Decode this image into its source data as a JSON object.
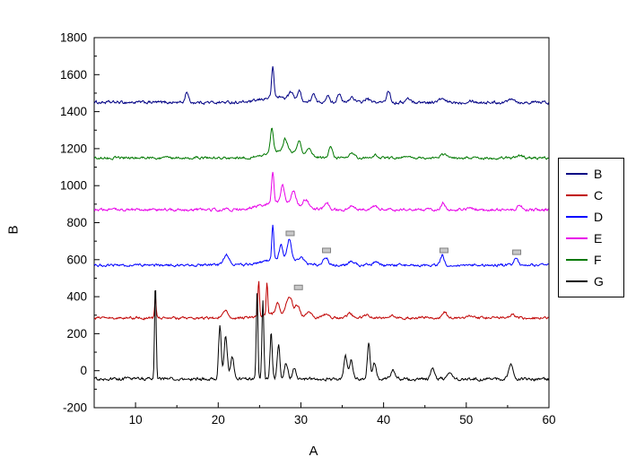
{
  "chart_data": {
    "type": "line",
    "title": "",
    "xlabel": "A",
    "ylabel": "B",
    "xlim": [
      5,
      60
    ],
    "ylim": [
      -200,
      1800
    ],
    "x_ticks": [
      10,
      20,
      30,
      40,
      50,
      60
    ],
    "x_minor_ticks": [
      15,
      25,
      35,
      45,
      55
    ],
    "y_ticks": [
      -200,
      0,
      200,
      400,
      600,
      800,
      1000,
      1200,
      1400,
      1600,
      1800
    ],
    "y_minor_ticks": [
      -100,
      100,
      300,
      500,
      700,
      900,
      1100,
      1300,
      1500,
      1700
    ],
    "grid": false,
    "legend_position": "right",
    "axis_color": "#000000",
    "background": "#ffffff",
    "series": [
      {
        "name": "B",
        "color": "#000084",
        "baseline": 1450,
        "noise": 13,
        "peaks": [
          [
            16.2,
            60,
            0.25
          ],
          [
            26.6,
            160,
            0.2
          ],
          [
            28.8,
            40,
            0.4
          ],
          [
            29.8,
            55,
            0.35
          ],
          [
            31.5,
            45,
            0.3
          ],
          [
            33.2,
            35,
            0.35
          ],
          [
            34.6,
            50,
            0.3
          ],
          [
            36.2,
            30,
            0.4
          ],
          [
            38.0,
            20,
            0.4
          ],
          [
            40.6,
            65,
            0.3
          ],
          [
            43.0,
            20,
            0.4
          ],
          [
            47.0,
            18,
            0.5
          ],
          [
            50.5,
            12,
            0.5
          ],
          [
            55.5,
            25,
            0.5
          ],
          [
            27.0,
            30,
            2.2
          ]
        ]
      },
      {
        "name": "C",
        "color": "#c00000",
        "baseline": 285,
        "noise": 11,
        "peaks": [
          [
            12.4,
            105,
            0.13
          ],
          [
            20.8,
            45,
            0.45
          ],
          [
            24.9,
            195,
            0.13
          ],
          [
            25.9,
            180,
            0.13
          ],
          [
            27.2,
            60,
            0.3
          ],
          [
            28.6,
            95,
            0.5
          ],
          [
            29.6,
            55,
            0.4
          ],
          [
            31.0,
            25,
            0.5
          ],
          [
            33.0,
            18,
            0.5
          ],
          [
            35.9,
            30,
            0.4
          ],
          [
            38.0,
            18,
            0.45
          ],
          [
            41.0,
            12,
            0.5
          ],
          [
            47.4,
            28,
            0.35
          ],
          [
            50.5,
            10,
            0.5
          ],
          [
            55.6,
            18,
            0.5
          ],
          [
            27.5,
            25,
            2.5
          ]
        ]
      },
      {
        "name": "D",
        "color": "#0000ff",
        "baseline": 570,
        "noise": 11,
        "peaks": [
          [
            21.0,
            55,
            0.5
          ],
          [
            26.6,
            185,
            0.16
          ],
          [
            27.6,
            75,
            0.3
          ],
          [
            28.6,
            115,
            0.35
          ],
          [
            30.0,
            30,
            0.5
          ],
          [
            33.0,
            45,
            0.4
          ],
          [
            36.2,
            22,
            0.5
          ],
          [
            39.0,
            15,
            0.5
          ],
          [
            47.1,
            55,
            0.3
          ],
          [
            56.0,
            45,
            0.3
          ],
          [
            27.5,
            35,
            2.5
          ]
        ]
      },
      {
        "name": "E",
        "color": "#e800e8",
        "baseline": 870,
        "noise": 12,
        "peaks": [
          [
            26.6,
            165,
            0.2
          ],
          [
            27.8,
            90,
            0.3
          ],
          [
            29.1,
            65,
            0.4
          ],
          [
            30.6,
            40,
            0.5
          ],
          [
            33.1,
            40,
            0.4
          ],
          [
            36.2,
            22,
            0.5
          ],
          [
            39.0,
            14,
            0.5
          ],
          [
            47.2,
            35,
            0.35
          ],
          [
            50.5,
            10,
            0.5
          ],
          [
            56.5,
            25,
            0.4
          ],
          [
            27.5,
            45,
            2.8
          ]
        ]
      },
      {
        "name": "F",
        "color": "#007800",
        "baseline": 1150,
        "noise": 11,
        "peaks": [
          [
            26.5,
            135,
            0.25
          ],
          [
            28.1,
            65,
            0.35
          ],
          [
            29.8,
            70,
            0.35
          ],
          [
            30.9,
            40,
            0.4
          ],
          [
            33.6,
            55,
            0.35
          ],
          [
            36.2,
            25,
            0.5
          ],
          [
            39.0,
            14,
            0.5
          ],
          [
            43.0,
            12,
            0.5
          ],
          [
            47.2,
            18,
            0.5
          ],
          [
            56.5,
            12,
            0.5
          ],
          [
            28.0,
            40,
            2.5
          ]
        ]
      },
      {
        "name": "G",
        "color": "#000000",
        "baseline": -45,
        "noise": 13,
        "peaks": [
          [
            12.4,
            515,
            0.14
          ],
          [
            20.2,
            290,
            0.22
          ],
          [
            20.9,
            230,
            0.28
          ],
          [
            21.7,
            120,
            0.3
          ],
          [
            24.7,
            470,
            0.14
          ],
          [
            25.4,
            420,
            0.16
          ],
          [
            26.4,
            250,
            0.18
          ],
          [
            27.3,
            185,
            0.22
          ],
          [
            28.2,
            90,
            0.3
          ],
          [
            29.2,
            60,
            0.3
          ],
          [
            35.4,
            125,
            0.28
          ],
          [
            36.1,
            100,
            0.28
          ],
          [
            38.2,
            200,
            0.22
          ],
          [
            38.9,
            90,
            0.3
          ],
          [
            41.1,
            45,
            0.4
          ],
          [
            45.9,
            55,
            0.3
          ],
          [
            48.0,
            25,
            0.4
          ],
          [
            55.4,
            75,
            0.4
          ]
        ]
      }
    ],
    "markers": [
      {
        "x": 28.7,
        "y": 742
      },
      {
        "x": 33.1,
        "y": 650
      },
      {
        "x": 47.3,
        "y": 650
      },
      {
        "x": 56.1,
        "y": 640
      },
      {
        "x": 29.7,
        "y": 450
      }
    ],
    "marker_style": {
      "fill": "#c8c8c8",
      "stroke": "#808080",
      "width": 9,
      "height": 5
    }
  }
}
